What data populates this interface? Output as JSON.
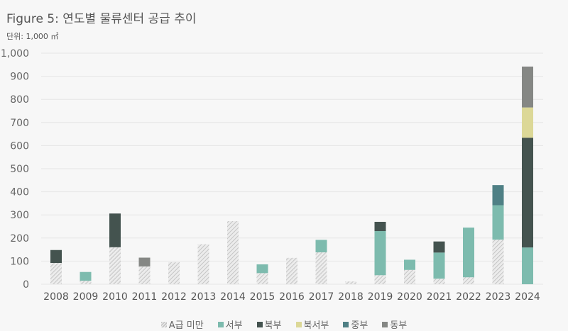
{
  "chart_data": {
    "type": "bar",
    "stacked": true,
    "title": "Figure 5:  연도별 물류센터 공급 추이",
    "unit_label": "단위: 1,000 ㎡",
    "xlabel": "",
    "ylabel": "",
    "ylim": [
      0,
      1000
    ],
    "yticks": [
      0,
      100,
      200,
      300,
      400,
      500,
      600,
      700,
      800,
      900,
      1000
    ],
    "ytick_labels": [
      "0",
      "100",
      "200",
      "300",
      "400",
      "500",
      "600",
      "700",
      "800",
      "900",
      "1,000"
    ],
    "grid": true,
    "legend_position": "bottom",
    "categories": [
      "2008",
      "2009",
      "2010",
      "2011",
      "2012",
      "2013",
      "2014",
      "2015",
      "2016",
      "2017",
      "2018",
      "2019",
      "2020",
      "2021",
      "2022",
      "2023",
      "2024"
    ],
    "series": [
      {
        "name": "A급 미만",
        "color": "#d0d0d0",
        "pattern": "hatched",
        "values": [
          92,
          15,
          160,
          77,
          95,
          173,
          273,
          48,
          114,
          138,
          12,
          39,
          62,
          24,
          30,
          193,
          0
        ]
      },
      {
        "name": "서부",
        "color": "#7dbbae",
        "values": [
          0,
          38,
          0,
          0,
          0,
          0,
          0,
          38,
          0,
          54,
          0,
          191,
          44,
          113,
          215,
          149,
          159
        ]
      },
      {
        "name": "북부",
        "color": "#44534f",
        "values": [
          56,
          0,
          146,
          0,
          0,
          0,
          0,
          0,
          0,
          0,
          0,
          40,
          0,
          48,
          0,
          0,
          475
        ]
      },
      {
        "name": "북서부",
        "color": "#dcd897",
        "values": [
          0,
          0,
          0,
          0,
          0,
          0,
          0,
          0,
          0,
          0,
          0,
          0,
          0,
          0,
          0,
          0,
          131
        ]
      },
      {
        "name": "중부",
        "color": "#4f8085",
        "values": [
          0,
          0,
          0,
          0,
          0,
          0,
          0,
          0,
          0,
          0,
          0,
          0,
          0,
          0,
          0,
          87,
          0
        ]
      },
      {
        "name": "동부",
        "color": "#858784",
        "values": [
          0,
          0,
          0,
          38,
          0,
          0,
          0,
          0,
          0,
          0,
          0,
          0,
          0,
          0,
          0,
          0,
          177
        ]
      }
    ]
  }
}
